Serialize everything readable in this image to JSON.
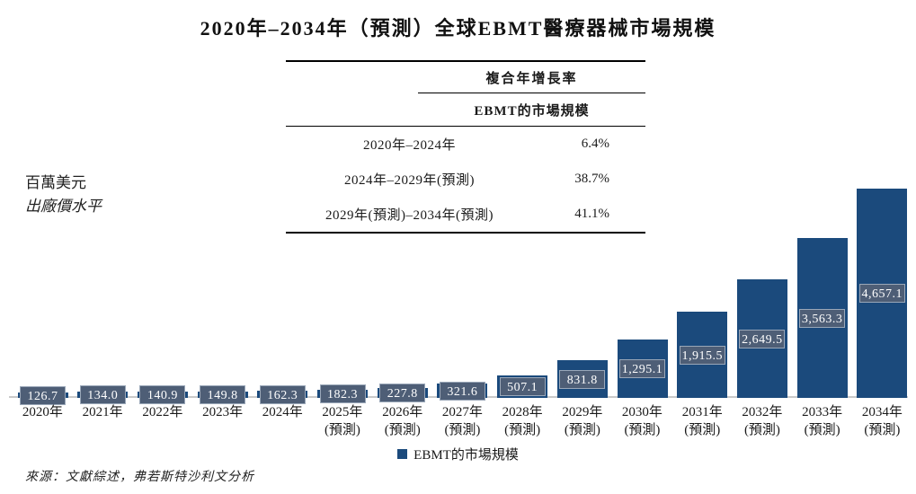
{
  "title": "2020年–2034年（預測）全球EBMT醫療器械市場規模",
  "cagr_table": {
    "col_header": "複合年增長率",
    "sub_header": "EBMT的市場規模",
    "rows": [
      {
        "period": "2020年–2024年",
        "value": "6.4%"
      },
      {
        "period": "2024年–2029年(預測)",
        "value": "38.7%"
      },
      {
        "period": "2029年(預測)–2034年(預測)",
        "value": "41.1%"
      }
    ]
  },
  "unit_note": {
    "line1": "百萬美元",
    "line2": "出廠價水平"
  },
  "legend": {
    "label": "EBMT的市場規模"
  },
  "source": "來源：文獻綜述，弗若斯特沙利文分析",
  "colors": {
    "bar": "#1b4a7c",
    "label_box": "#4e5e76",
    "label_border": "#9aa7b8",
    "baseline": "#c9c9c9"
  },
  "chart_data": {
    "type": "bar",
    "title": "2020年–2034年（預測）全球EBMT醫療器械市場規模",
    "ylabel": "百萬美元（出廠價水平）",
    "xlabel": "",
    "legend": [
      "EBMT的市場規模"
    ],
    "legend_position": "bottom",
    "grid": false,
    "ylim": [
      0,
      4700
    ],
    "categories": [
      "2020年",
      "2021年",
      "2022年",
      "2023年",
      "2024年",
      "2025年(預測)",
      "2026年(預測)",
      "2027年(預測)",
      "2028年(預測)",
      "2029年(預測)",
      "2030年(預測)",
      "2031年(預測)",
      "2032年(預測)",
      "2033年(預測)",
      "2034年(預測)"
    ],
    "x_labels_lines": [
      [
        "2020年"
      ],
      [
        "2021年"
      ],
      [
        "2022年"
      ],
      [
        "2023年"
      ],
      [
        "2024年"
      ],
      [
        "2025年",
        "(預測)"
      ],
      [
        "2026年",
        "(預測)"
      ],
      [
        "2027年",
        "(預測)"
      ],
      [
        "2028年",
        "(預測)"
      ],
      [
        "2029年",
        "(預測)"
      ],
      [
        "2030年",
        "(預測)"
      ],
      [
        "2031年",
        "(預測)"
      ],
      [
        "2032年",
        "(預測)"
      ],
      [
        "2033年",
        "(預測)"
      ],
      [
        "2034年",
        "(預測)"
      ]
    ],
    "values": [
      126.7,
      134.0,
      140.9,
      149.8,
      162.3,
      182.3,
      227.8,
      321.6,
      507.1,
      831.8,
      1295.1,
      1915.5,
      2649.5,
      3563.3,
      4657.1
    ],
    "value_labels": [
      "126.7",
      "134.0",
      "140.9",
      "149.8",
      "162.3",
      "182.3",
      "227.8",
      "321.6",
      "507.1",
      "831.8",
      "1,295.1",
      "1,915.5",
      "2,649.5",
      "3,563.3",
      "4,657.1"
    ]
  }
}
